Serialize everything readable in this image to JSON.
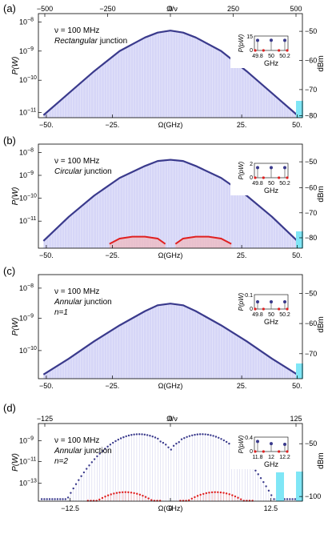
{
  "chart_data": [
    {
      "panel_label": "(a)",
      "type": "line",
      "top_axis": {
        "label": "Ω/ν",
        "ticks": [
          "−500",
          "−250",
          "0",
          "250",
          "500"
        ]
      },
      "xlabel": "Ω(GHz)",
      "x_ticks": [
        "−50.",
        "−25.",
        "25.",
        "50."
      ],
      "ylabel_left": "P(W)",
      "y_ticks_left": [
        "10",
        "10",
        "10",
        "10"
      ],
      "y_exps_left": [
        "−8",
        "−9",
        "−10",
        "−11"
      ],
      "ylabel_right": "dBm",
      "y_ticks_right": [
        "−50",
        "−60",
        "−70",
        "−80"
      ],
      "annotation": {
        "line1": "ν = 100 MHz",
        "line2_italic": "Rectangular",
        "line2_rest": " junction",
        "line3": ""
      },
      "inset": {
        "ylabel": "P(pW)",
        "y_ticks": [
          "15",
          "0"
        ],
        "x_ticks": [
          "49.8",
          "50",
          "50.2"
        ],
        "xlabel": "GHz",
        "values_pW": [
          10.5,
          10.6,
          10.5
        ]
      },
      "series": [
        {
          "x": [
            -50,
            -40,
            -30,
            -20,
            -10,
            -5,
            0,
            5,
            10,
            20,
            30,
            40,
            50
          ],
          "y": [
            1.2e-11,
            6e-11,
            3e-10,
            1.3e-09,
            3.5e-09,
            5e-09,
            5.8e-09,
            5e-09,
            3.5e-09,
            1.3e-09,
            3e-10,
            6e-11,
            1.2e-11
          ]
        }
      ],
      "ylim": [
        1e-11,
        2e-08
      ],
      "xlim": [
        -52,
        52
      ]
    },
    {
      "panel_label": "(b)",
      "type": "line",
      "xlabel": "Ω(GHz)",
      "x_ticks": [
        "−50.",
        "−25.",
        "25.",
        "50."
      ],
      "ylabel_left": "P(W)",
      "y_ticks_left": [
        "10",
        "10",
        "10",
        "10"
      ],
      "y_exps_left": [
        "−8",
        "−9",
        "−10",
        "−11"
      ],
      "ylabel_right": "dBm",
      "y_ticks_right": [
        "−50",
        "−60",
        "−70",
        "−80"
      ],
      "annotation": {
        "line1": "ν = 100 MHz",
        "line2_italic": "Circular",
        "line2_rest": " junction",
        "line3": ""
      },
      "inset": {
        "ylabel": "P(pW)",
        "y_ticks": [
          "2",
          "0"
        ],
        "x_ticks": [
          "49.8",
          "50",
          "50.2"
        ],
        "xlabel": "GHz",
        "values_pW": [
          1.4,
          1.4,
          1.4
        ]
      },
      "series": [
        {
          "x": [
            -50,
            -40,
            -30,
            -20,
            -10,
            -5,
            0,
            5,
            10,
            20,
            30,
            40,
            50
          ],
          "y": [
            2e-12,
            2e-11,
            1.5e-10,
            8e-10,
            2.5e-09,
            4e-09,
            4.5e-09,
            4e-09,
            2.5e-09,
            8e-10,
            1.5e-10,
            2e-11,
            2e-12
          ]
        },
        {
          "x": [
            -24,
            -20,
            -15,
            -10,
            -5,
            -2
          ],
          "y": [
            1.5e-12,
            2.5e-12,
            3e-12,
            3e-12,
            2.5e-12,
            1.5e-12
          ]
        },
        {
          "x": [
            2,
            5,
            10,
            15,
            20,
            24
          ],
          "y": [
            1.5e-12,
            2.5e-12,
            3e-12,
            3e-12,
            2.5e-12,
            1.5e-12
          ]
        }
      ],
      "ylim": [
        1e-12,
        2e-08
      ],
      "xlim": [
        -52,
        52
      ]
    },
    {
      "panel_label": "(c)",
      "type": "line",
      "xlabel": "Ω(GHz)",
      "x_ticks": [
        "−50.",
        "−25.",
        "25.",
        "50."
      ],
      "ylabel_left": "P(W)",
      "y_ticks_left": [
        "10",
        "10",
        "10"
      ],
      "y_exps_left": [
        "−8",
        "−9",
        "−10"
      ],
      "ylabel_right": "dBm",
      "y_ticks_right": [
        "−50",
        "−60",
        "−70"
      ],
      "annotation": {
        "line1": "ν = 100 MHz",
        "line2_italic": "Annular",
        "line2_rest": " junction",
        "line3": "n=1"
      },
      "inset": {
        "ylabel": "P(pW)",
        "y_ticks": [
          "0.1",
          "0"
        ],
        "x_ticks": [
          "49.8",
          "50",
          "50.2"
        ],
        "xlabel": "GHz",
        "values_pW": [
          0.05,
          0.05,
          0.05
        ]
      },
      "series": [
        {
          "x": [
            -50,
            -40,
            -30,
            -20,
            -10,
            -5,
            0,
            5,
            10,
            20,
            30,
            40,
            50
          ],
          "y": [
            2e-11,
            6e-11,
            2e-10,
            6e-10,
            1.6e-09,
            2.4e-09,
            2.7e-09,
            2.4e-09,
            1.6e-09,
            6e-10,
            2e-10,
            6e-11,
            2e-11
          ]
        }
      ],
      "ylim": [
        1.5e-11,
        2e-08
      ],
      "xlim": [
        -52,
        52
      ]
    },
    {
      "panel_label": "(d)",
      "type": "scatter",
      "top_axis": {
        "label": "Ω/ν",
        "ticks": [
          "−125",
          "0",
          "125"
        ]
      },
      "xlabel": "Ω(GHz)",
      "x_ticks": [
        "−12.5",
        "0",
        "12.5"
      ],
      "ylabel_left": "P(W)",
      "y_ticks_left": [
        "10",
        "10",
        "10"
      ],
      "y_exps_left": [
        "−9",
        "−11",
        "−13"
      ],
      "ylabel_right": "dBm",
      "y_ticks_right": [
        "−50",
        "−100"
      ],
      "annotation": {
        "line1": "ν = 100 MHz",
        "line2_italic": "Annular",
        "line2_rest": " junction",
        "line3": "n=2"
      },
      "inset": {
        "ylabel": "P(pW)",
        "y_ticks": [
          "0.4",
          "0"
        ],
        "x_ticks": [
          "11.8",
          "12",
          "12.2"
        ],
        "xlabel": "GHz",
        "values_pW": [
          0.28,
          0.22,
          0.2
        ]
      },
      "series": [
        {
          "x": [
            -16,
            -12,
            -8,
            -5,
            -3,
            -1,
            0,
            1,
            3,
            5,
            8,
            12,
            16
          ],
          "y": [
            3e-14,
            2e-12,
            5e-11,
            2.5e-10,
            6e-10,
            1.5e-10,
            2e-11,
            1.5e-10,
            6e-10,
            2.5e-10,
            5e-11,
            2e-12,
            3e-14
          ]
        },
        {
          "x": [
            -10,
            -8,
            -6,
            -4,
            -2,
            -1,
            1,
            2,
            4,
            6,
            8,
            10
          ],
          "y": [
            1.5e-15,
            4e-15,
            6e-15,
            5e-15,
            2.5e-15,
            1.2e-15,
            1.2e-15,
            2.5e-15,
            5e-15,
            6e-15,
            4e-15,
            1.5e-15
          ]
        }
      ],
      "ylim": [
        1e-15,
        5e-09
      ],
      "xlim": [
        -16,
        16
      ]
    }
  ],
  "colors": {
    "main": "#3a3a8c",
    "red": "#e02020",
    "fill": "#c8c8f4",
    "cyan": "#7fe6f6"
  }
}
